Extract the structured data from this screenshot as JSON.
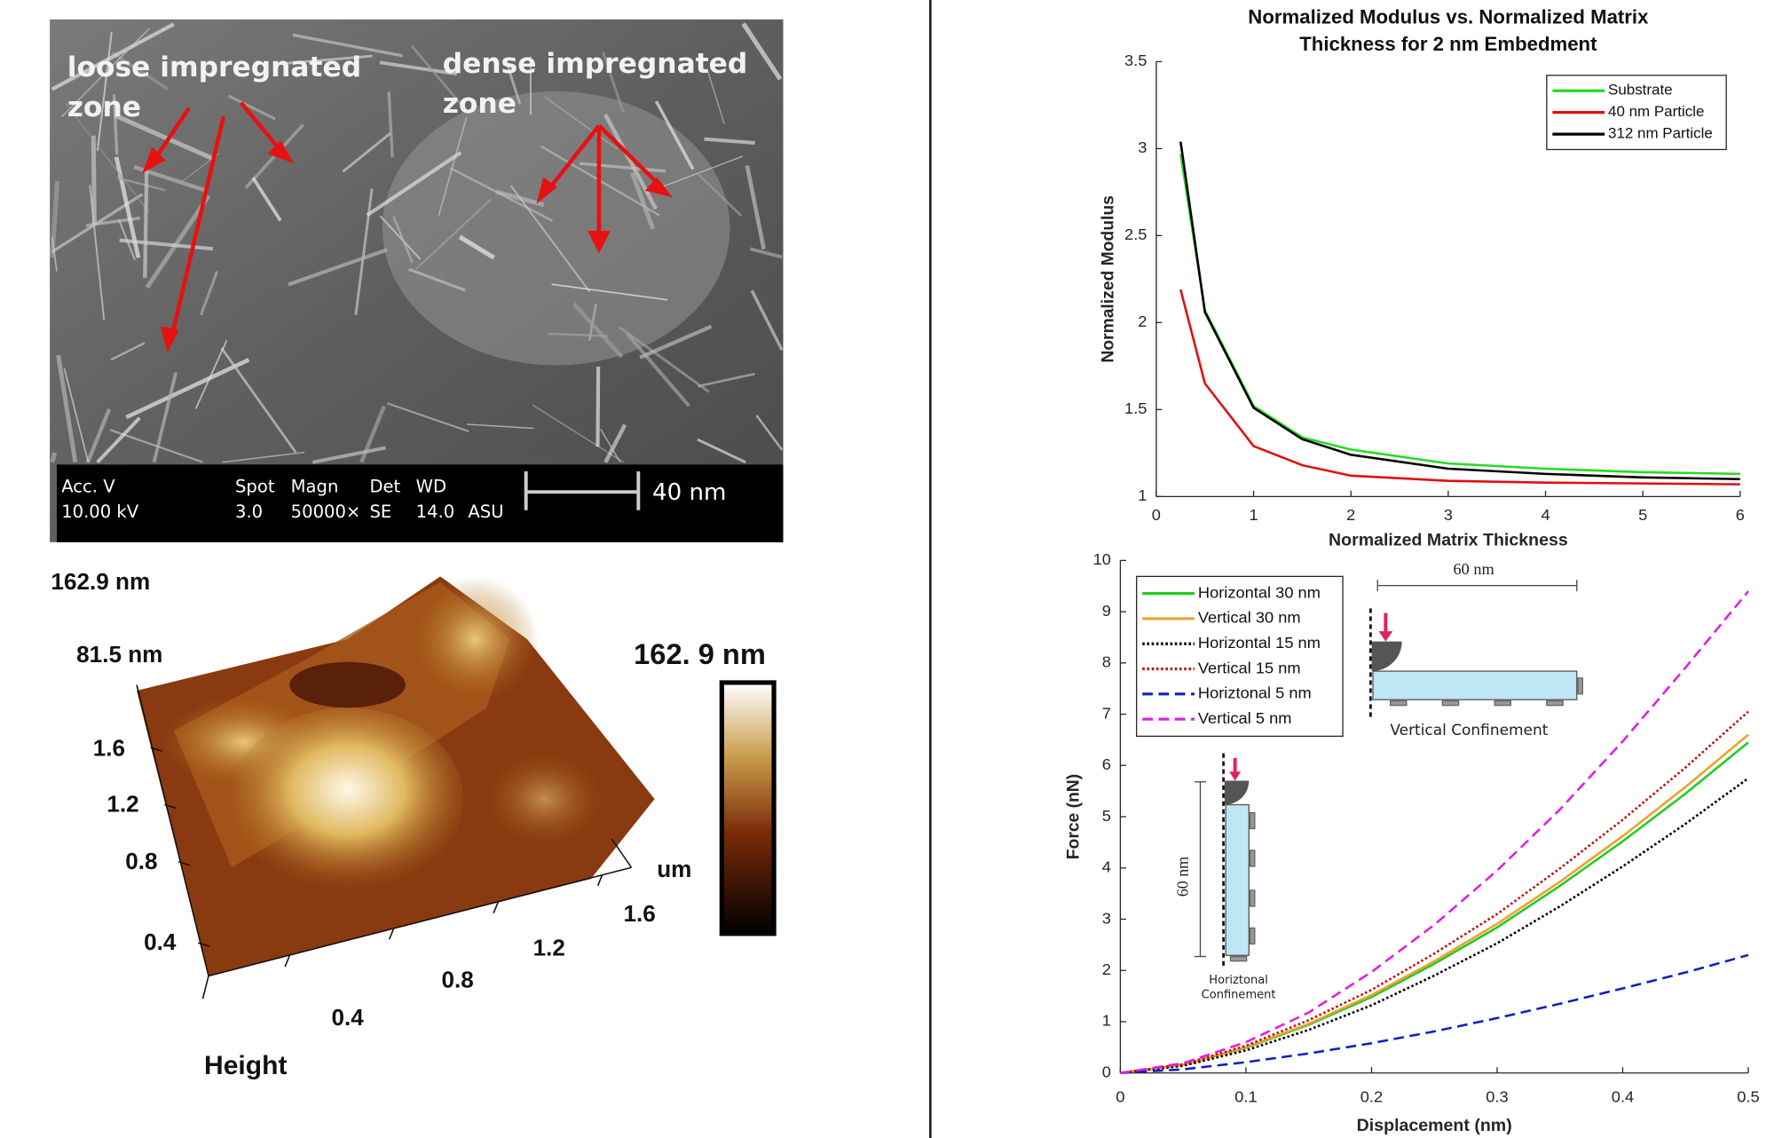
{
  "sem_image": {
    "label_loose": [
      "loose impregnated",
      "zone"
    ],
    "label_dense": [
      "dense impregnated",
      "zone"
    ],
    "info": {
      "acc_v": "Acc. V",
      "acc_v_value": "10.00 kV",
      "spot": "Spot",
      "spot_value": "3.0",
      "magn": "Magn",
      "magn_value": "50000×",
      "det": "Det",
      "det_value": "SE",
      "wd": "WD",
      "wd_value": "14.0",
      "site": "ASU",
      "scale_bar": "40 nm"
    }
  },
  "afm_image": {
    "z_max": "162.9 nm",
    "z_mid": "81.5 nm",
    "y_ticks": [
      "1.6",
      "1.2",
      "0.8",
      "0.4"
    ],
    "x_ticks": [
      "0.4",
      "0.8",
      "1.2",
      "1.6"
    ],
    "unit": "um",
    "caption": "Height",
    "colorbar_max": "162. 9 nm"
  },
  "chart_data": [
    {
      "type": "line",
      "title": [
        "Normalized Modulus vs. Normalized Matrix",
        "Thickness for 2 nm Embedment"
      ],
      "x_label": "Normalized Matrix Thickness",
      "y_label": "Normalized Modulus",
      "x": [
        0.25,
        0.5,
        1,
        1.5,
        2,
        3,
        4,
        5,
        6
      ],
      "series": [
        {
          "name": "Substrate",
          "color": "#22dd22",
          "style": "solid",
          "values": [
            2.97,
            2.07,
            1.52,
            1.34,
            1.27,
            1.19,
            1.16,
            1.14,
            1.13
          ]
        },
        {
          "name": "40 nm Particle",
          "color": "#e01010",
          "style": "solid",
          "values": [
            2.19,
            1.65,
            1.29,
            1.18,
            1.12,
            1.09,
            1.08,
            1.075,
            1.07
          ]
        },
        {
          "name": "312 nm Particle",
          "color": "#000000",
          "style": "solid",
          "values": [
            3.04,
            2.06,
            1.51,
            1.33,
            1.24,
            1.16,
            1.13,
            1.11,
            1.1
          ]
        }
      ],
      "xlim": [
        0,
        6
      ],
      "xticks": [
        0,
        1,
        2,
        3,
        4,
        5,
        6
      ],
      "ylim": [
        1,
        3.5
      ],
      "yticks": [
        1,
        1.5,
        2,
        2.5,
        3,
        3.5
      ],
      "legend": "upper right"
    },
    {
      "type": "line",
      "x_label": "Displacement (nm)",
      "y_label": "Force (nN)",
      "x": [
        0,
        0.05,
        0.1,
        0.15,
        0.2,
        0.25,
        0.3,
        0.35,
        0.4,
        0.45,
        0.5
      ],
      "series": [
        {
          "name": "Horizontal 30 nm",
          "color": "#22cc22",
          "style": "solid",
          "values": [
            0,
            0.16,
            0.49,
            0.94,
            1.48,
            2.13,
            2.84,
            3.65,
            4.52,
            5.45,
            6.45
          ]
        },
        {
          "name": "Vertical 30 nm",
          "color": "#f0a030",
          "style": "solid",
          "values": [
            0,
            0.16,
            0.5,
            0.96,
            1.52,
            2.18,
            2.91,
            3.73,
            4.62,
            5.58,
            6.6
          ]
        },
        {
          "name": "Horizontal 15 nm",
          "color": "#000000",
          "style": "dotted",
          "values": [
            0,
            0.14,
            0.44,
            0.84,
            1.32,
            1.9,
            2.53,
            3.25,
            4.03,
            4.86,
            5.75
          ]
        },
        {
          "name": "Vertical 15 nm",
          "color": "#c01010",
          "style": "dotted",
          "values": [
            0,
            0.17,
            0.53,
            1.03,
            1.62,
            2.33,
            3.1,
            3.99,
            4.94,
            5.96,
            7.05
          ]
        },
        {
          "name": "Horiztonal 5 nm",
          "color": "#1020c0",
          "style": "dashed",
          "values": [
            0,
            0.07,
            0.21,
            0.38,
            0.58,
            0.81,
            1.07,
            1.35,
            1.65,
            1.96,
            2.3
          ]
        },
        {
          "name": "Vertical 5 nm",
          "color": "#e020e0",
          "style": "dashed",
          "values": [
            0,
            0.19,
            0.6,
            1.18,
            1.97,
            2.89,
            3.95,
            5.14,
            6.47,
            7.91,
            9.4
          ]
        }
      ],
      "xlim": [
        0,
        0.5
      ],
      "xticks": [
        0,
        0.1,
        0.2,
        0.3,
        0.4,
        0.5
      ],
      "ylim": [
        0,
        10
      ],
      "yticks": [
        0,
        1,
        2,
        3,
        4,
        5,
        6,
        7,
        8,
        9,
        10
      ],
      "legend": "upper left",
      "annotations": [
        "60 nm",
        "Vertical Confinement",
        "60 nm",
        "Horiztonal",
        "Confinement"
      ]
    }
  ]
}
